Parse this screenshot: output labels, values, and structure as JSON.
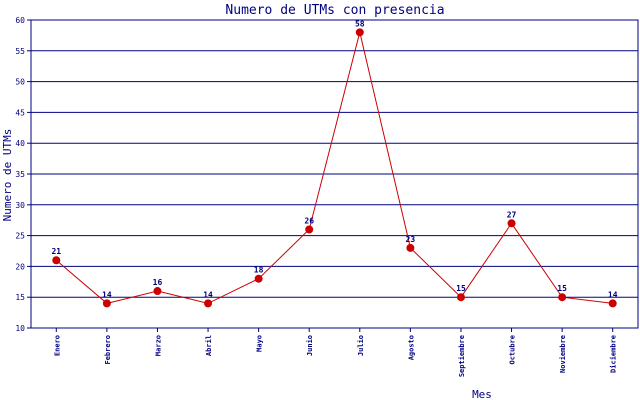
{
  "chart_data": {
    "type": "line",
    "title": "Numero de UTMs con presencia",
    "xlabel": "Mes",
    "ylabel": "Numero de UTMs",
    "categories": [
      "Enero",
      "Febrero",
      "Marzo",
      "Abril",
      "Mayo",
      "Junio",
      "Julio",
      "Agosto",
      "Septiembre",
      "Octubre",
      "Noviembre",
      "Diciembre"
    ],
    "values": [
      21,
      14,
      16,
      14,
      18,
      26,
      58,
      23,
      15,
      27,
      15,
      14
    ],
    "ylim": [
      10,
      60
    ],
    "yticks": [
      10,
      15,
      20,
      25,
      30,
      35,
      40,
      45,
      50,
      55,
      60
    ],
    "grid": true,
    "legend": "none",
    "colors": {
      "line": "#cc0000",
      "marker": "#cc0000",
      "grid": "#000080",
      "text": "#000080"
    }
  }
}
